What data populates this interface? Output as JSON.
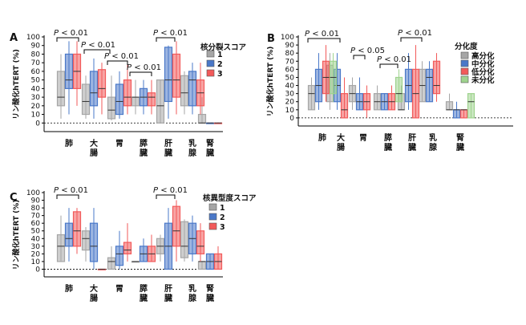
{
  "chart_data": [
    {
      "panel": "A",
      "type": "box",
      "ylabel": "リン酸化hTERT (%)",
      "ylim": [
        -10,
        100
      ],
      "yticks": [
        0,
        10,
        20,
        30,
        40,
        50,
        60,
        70,
        80,
        90,
        100
      ],
      "categories": [
        "肺",
        "大腸",
        "胃",
        "膵臓",
        "肝臓",
        "乳腺",
        "腎臓"
      ],
      "legend_title": "核分裂スコア",
      "legend_position": "right",
      "series": [
        {
          "name": "1",
          "color": "#a6a6a6",
          "boxes": [
            {
              "cat": 0,
              "min": 5,
              "q1": 20,
              "median": 30,
              "q3": 60,
              "max": 80
            },
            {
              "cat": 1,
              "min": 5,
              "q1": 10,
              "median": 25,
              "q3": 45,
              "max": 55
            },
            {
              "cat": 2,
              "min": 3,
              "q1": 5,
              "median": 15,
              "q3": 30,
              "max": 55
            },
            {
              "cat": 3,
              "min": 10,
              "q1": 20,
              "median": 30,
              "q3": 30,
              "max": 50
            },
            {
              "cat": 4,
              "min": 0,
              "q1": 0,
              "median": 20,
              "q3": 50,
              "max": 50
            },
            {
              "cat": 5,
              "min": 10,
              "q1": 20,
              "median": 35,
              "q3": 55,
              "max": 60
            },
            {
              "cat": 6,
              "min": 0,
              "q1": 0,
              "median": 0,
              "q3": 10,
              "max": 30
            }
          ]
        },
        {
          "name": "2",
          "color": "#4a78c8",
          "boxes": [
            {
              "cat": 0,
              "min": 10,
              "q1": 40,
              "median": 50,
              "q3": 80,
              "max": 95
            },
            {
              "cat": 1,
              "min": 5,
              "q1": 20,
              "median": 35,
              "q3": 60,
              "max": 75
            },
            {
              "cat": 2,
              "min": 5,
              "q1": 10,
              "median": 25,
              "q3": 45,
              "max": 60
            },
            {
              "cat": 3,
              "min": 10,
              "q1": 20,
              "median": 30,
              "q3": 40,
              "max": 50
            },
            {
              "cat": 4,
              "min": 5,
              "q1": 25,
              "median": 50,
              "q3": 88,
              "max": 90
            },
            {
              "cat": 5,
              "min": 10,
              "q1": 20,
              "median": 50,
              "q3": 60,
              "max": 70
            },
            {
              "cat": 6,
              "min": 0,
              "q1": 0,
              "median": 0,
              "q3": 0,
              "max": 0
            }
          ]
        },
        {
          "name": "3",
          "color": "#f25a5a",
          "boxes": [
            {
              "cat": 0,
              "min": 20,
              "q1": 40,
              "median": 60,
              "q3": 80,
              "max": 95
            },
            {
              "cat": 1,
              "min": 10,
              "q1": 30,
              "median": 40,
              "q3": 62,
              "max": 70
            },
            {
              "cat": 2,
              "min": 10,
              "q1": 20,
              "median": 30,
              "q3": 50,
              "max": 70
            },
            {
              "cat": 3,
              "min": 10,
              "q1": 20,
              "median": 30,
              "q3": 35,
              "max": 50
            },
            {
              "cat": 4,
              "min": 10,
              "q1": 30,
              "median": 50,
              "q3": 80,
              "max": 95
            },
            {
              "cat": 5,
              "min": 10,
              "q1": 20,
              "median": 35,
              "q3": 50,
              "max": 70
            },
            {
              "cat": 6,
              "min": 0,
              "q1": 0,
              "median": 0,
              "q3": 0,
              "max": 0
            }
          ]
        }
      ],
      "annotations": [
        {
          "text": "P < 0.01",
          "from_cat": 0
        },
        {
          "text": "P < 0.01",
          "from_cat": 1
        },
        {
          "text": "P < 0.01",
          "from_cat": 2
        },
        {
          "text": "P < 0.01",
          "from_cat": 3
        },
        {
          "text": "P < 0.01",
          "from_cat": 4
        }
      ]
    },
    {
      "panel": "B",
      "type": "box",
      "ylabel": "リン酸化hTERT (%)",
      "ylim": [
        -10,
        100
      ],
      "yticks": [
        0,
        10,
        20,
        30,
        40,
        50,
        60,
        70,
        80,
        90,
        100
      ],
      "categories": [
        "肺",
        "大腸",
        "胃",
        "膵臓",
        "肝臓",
        "乳腺",
        "腎臓"
      ],
      "legend_title": "分化度",
      "legend_position": "right",
      "series": [
        {
          "name": "高分化",
          "color": "#a6a6a6",
          "boxes": [
            {
              "cat": 0,
              "min": 10,
              "q1": 10,
              "median": 30,
              "q3": 40,
              "max": 50
            },
            {
              "cat": 1,
              "min": 10,
              "q1": 20,
              "median": 50,
              "q3": 65,
              "max": 80
            },
            {
              "cat": 2,
              "min": 10,
              "q1": 20,
              "median": 30,
              "q3": 40,
              "max": 50
            },
            {
              "cat": 3,
              "min": 10,
              "q1": 10,
              "median": 20,
              "q3": 30,
              "max": 40
            },
            {
              "cat": 4,
              "min": 10,
              "q1": 10,
              "median": 10,
              "q3": 30,
              "max": 40
            },
            {
              "cat": 5,
              "min": 20,
              "q1": 20,
              "median": 40,
              "q3": 60,
              "max": 70
            },
            {
              "cat": 6,
              "min": 10,
              "q1": 10,
              "median": 10,
              "q3": 20,
              "max": 30
            }
          ]
        },
        {
          "name": "中分化",
          "color": "#4a78c8",
          "boxes": [
            {
              "cat": 0,
              "min": 10,
              "q1": 20,
              "median": 40,
              "q3": 60,
              "max": 80
            },
            {
              "cat": 1,
              "min": 10,
              "q1": 20,
              "median": 40,
              "q3": 60,
              "max": 80
            },
            {
              "cat": 2,
              "min": 10,
              "q1": 10,
              "median": 20,
              "q3": 30,
              "max": 50
            },
            {
              "cat": 3,
              "min": 10,
              "q1": 10,
              "median": 20,
              "q3": 30,
              "max": 30
            },
            {
              "cat": 4,
              "min": 10,
              "q1": 20,
              "median": 40,
              "q3": 60,
              "max": 80
            },
            {
              "cat": 5,
              "min": 20,
              "q1": 20,
              "median": 50,
              "q3": 60,
              "max": 70
            },
            {
              "cat": 6,
              "min": 0,
              "q1": 0,
              "median": 10,
              "q3": 10,
              "max": 20
            }
          ]
        },
        {
          "name": "低分化",
          "color": "#f25a5a",
          "boxes": [
            {
              "cat": 0,
              "min": 20,
              "q1": 30,
              "median": 50,
              "q3": 70,
              "max": 90
            },
            {
              "cat": 1,
              "min": 0,
              "q1": 0,
              "median": 10,
              "q3": 30,
              "max": 50
            },
            {
              "cat": 2,
              "min": 0,
              "q1": 10,
              "median": 20,
              "q3": 30,
              "max": 40
            },
            {
              "cat": 3,
              "min": 10,
              "q1": 10,
              "median": 20,
              "q3": 30,
              "max": 40
            },
            {
              "cat": 4,
              "min": 0,
              "q1": 0,
              "median": 30,
              "q3": 60,
              "max": 90
            },
            {
              "cat": 5,
              "min": 20,
              "q1": 30,
              "median": 40,
              "q3": 70,
              "max": 80
            },
            {
              "cat": 6,
              "min": 0,
              "q1": 0,
              "median": 10,
              "q3": 10,
              "max": 10
            }
          ]
        },
        {
          "name": "未分化",
          "color": "#9fd38e",
          "boxes": [
            {
              "cat": 0,
              "min": 20,
              "q1": 30,
              "median": 50,
              "q3": 70,
              "max": 80
            },
            {
              "cat": 3,
              "min": 20,
              "q1": 20,
              "median": 30,
              "q3": 50,
              "max": 60
            },
            {
              "cat": 6,
              "min": 0,
              "q1": 0,
              "median": 20,
              "q3": 30,
              "max": 30
            }
          ]
        }
      ],
      "annotations": [
        {
          "text": "P < 0.01",
          "from_cat": 0
        },
        {
          "text": "P < 0.05",
          "from_cat": 2
        },
        {
          "text": "P < 0.01",
          "from_cat": 3
        },
        {
          "text": "P < 0.01",
          "from_cat": 4
        }
      ]
    },
    {
      "panel": "C",
      "type": "box",
      "ylabel": "リン酸化hTERT (%)",
      "ylim": [
        -10,
        100
      ],
      "yticks": [
        0,
        10,
        20,
        30,
        40,
        50,
        60,
        70,
        80,
        90,
        100
      ],
      "categories": [
        "肺",
        "大腸",
        "胃",
        "膵臓",
        "肝臓",
        "乳腺",
        "腎臓"
      ],
      "legend_title": "核異型度スコア",
      "legend_position": "right",
      "series": [
        {
          "name": "1",
          "color": "#a6a6a6",
          "boxes": [
            {
              "cat": 0,
              "min": 10,
              "q1": 10,
              "median": 30,
              "q3": 45,
              "max": 70
            },
            {
              "cat": 1,
              "min": 10,
              "q1": 25,
              "median": 40,
              "q3": 50,
              "max": 55
            },
            {
              "cat": 2,
              "min": 0,
              "q1": 0,
              "median": 10,
              "q3": 15,
              "max": 30
            },
            {
              "cat": 3,
              "min": 10,
              "q1": 10,
              "median": 10,
              "q3": 10,
              "max": 10
            },
            {
              "cat": 4,
              "min": 10,
              "q1": 20,
              "median": 30,
              "q3": 40,
              "max": 45
            },
            {
              "cat": 5,
              "min": 10,
              "q1": 15,
              "median": 30,
              "q3": 62,
              "max": 65
            },
            {
              "cat": 6,
              "min": 0,
              "q1": 0,
              "median": 10,
              "q3": 10,
              "max": 10
            }
          ]
        },
        {
          "name": "2",
          "color": "#4a78c8",
          "boxes": [
            {
              "cat": 0,
              "min": 10,
              "q1": 30,
              "median": 40,
              "q3": 60,
              "max": 80
            },
            {
              "cat": 1,
              "min": 0,
              "q1": 10,
              "median": 30,
              "q3": 60,
              "max": 80
            },
            {
              "cat": 2,
              "min": 0,
              "q1": 5,
              "median": 20,
              "q3": 30,
              "max": 50
            },
            {
              "cat": 3,
              "min": 10,
              "q1": 10,
              "median": 20,
              "q3": 30,
              "max": 40
            },
            {
              "cat": 4,
              "min": 0,
              "q1": 0,
              "median": 30,
              "q3": 60,
              "max": 80
            },
            {
              "cat": 5,
              "min": 10,
              "q1": 20,
              "median": 40,
              "q3": 60,
              "max": 70
            },
            {
              "cat": 6,
              "min": 0,
              "q1": 0,
              "median": 10,
              "q3": 20,
              "max": 20
            }
          ]
        },
        {
          "name": "3",
          "color": "#f25a5a",
          "boxes": [
            {
              "cat": 0,
              "min": 20,
              "q1": 30,
              "median": 50,
              "q3": 75,
              "max": 80
            },
            {
              "cat": 1,
              "min": 0,
              "q1": 0,
              "median": 0,
              "q3": 0,
              "max": 0
            },
            {
              "cat": 2,
              "min": 10,
              "q1": 20,
              "median": 25,
              "q3": 35,
              "max": 60
            },
            {
              "cat": 3,
              "min": 10,
              "q1": 10,
              "median": 20,
              "q3": 30,
              "max": 45
            },
            {
              "cat": 4,
              "min": 10,
              "q1": 30,
              "median": 50,
              "q3": 82,
              "max": 90
            },
            {
              "cat": 5,
              "min": 10,
              "q1": 20,
              "median": 30,
              "q3": 50,
              "max": 60
            },
            {
              "cat": 6,
              "min": 0,
              "q1": 0,
              "median": 10,
              "q3": 20,
              "max": 30
            }
          ]
        }
      ],
      "annotations": [
        {
          "text": "P < 0.01",
          "from_cat": 0
        },
        {
          "text": "P < 0.01",
          "from_cat": 4
        }
      ]
    }
  ]
}
